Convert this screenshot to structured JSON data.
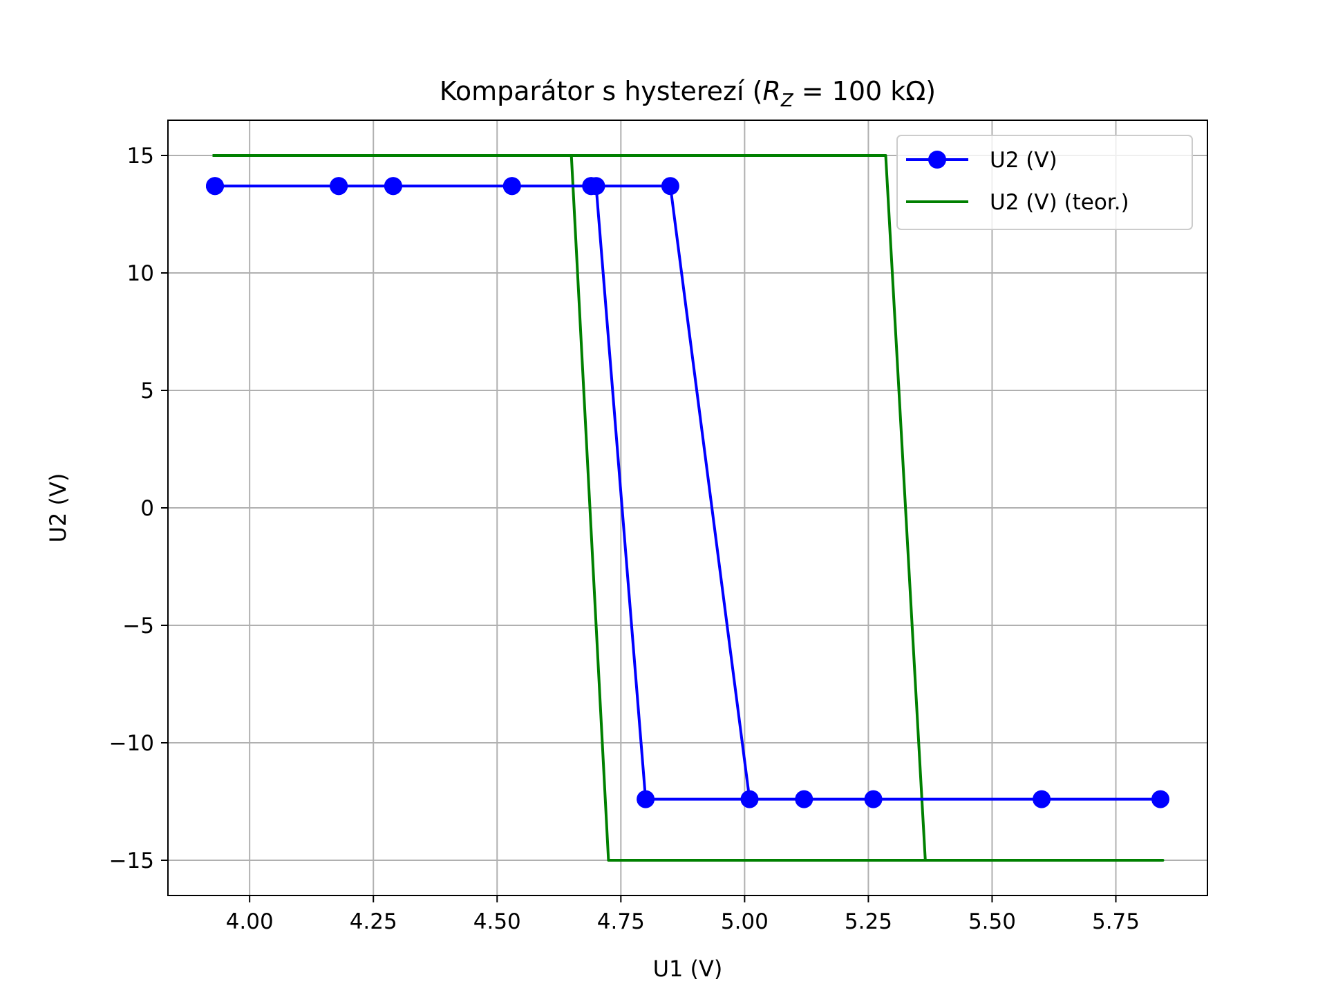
{
  "chart_data": {
    "type": "line",
    "title": "Komparátor s hysterezí (",
    "title_math": {
      "symbol": "R",
      "subscript": "Z",
      "rest": " = 100 kΩ)"
    },
    "xlabel": "U1 (V)",
    "ylabel": "U2 (V)",
    "xlim": [
      3.835,
      5.935
    ],
    "ylim": [
      -16.5,
      16.5
    ],
    "xticks": [
      "4.00",
      "4.25",
      "4.50",
      "4.75",
      "5.00",
      "5.25",
      "5.50",
      "5.75"
    ],
    "xtick_values": [
      4.0,
      4.25,
      4.5,
      4.75,
      5.0,
      5.25,
      5.5,
      5.75
    ],
    "yticks": [
      "15",
      "10",
      "5",
      "0",
      "−5",
      "−10",
      "−15"
    ],
    "ytick_values": [
      15,
      10,
      5,
      0,
      -5,
      -10,
      -15
    ],
    "grid": true,
    "legend_position": "top-right",
    "series": [
      {
        "name": "U2 (V)",
        "color": "#0000ff",
        "marker": "circle",
        "x": [
          3.93,
          4.18,
          4.29,
          4.53,
          4.69,
          4.7,
          4.8,
          5.84,
          5.6,
          5.26,
          5.12,
          5.01,
          4.85,
          4.69,
          4.53,
          4.29,
          4.18,
          3.93
        ],
        "y": [
          13.7,
          13.7,
          13.7,
          13.7,
          13.7,
          13.7,
          -12.4,
          -12.4,
          -12.4,
          -12.4,
          -12.4,
          -12.4,
          13.7,
          13.7,
          13.7,
          13.7,
          13.7,
          13.7
        ]
      },
      {
        "name": "U2 (V) (teor.)",
        "color": "#008000",
        "marker": "none",
        "x": [
          3.925,
          4.65,
          4.725,
          5.845,
          5.365,
          5.285,
          3.925
        ],
        "y": [
          15,
          15,
          -15,
          -15,
          -15,
          15,
          15
        ]
      }
    ]
  }
}
